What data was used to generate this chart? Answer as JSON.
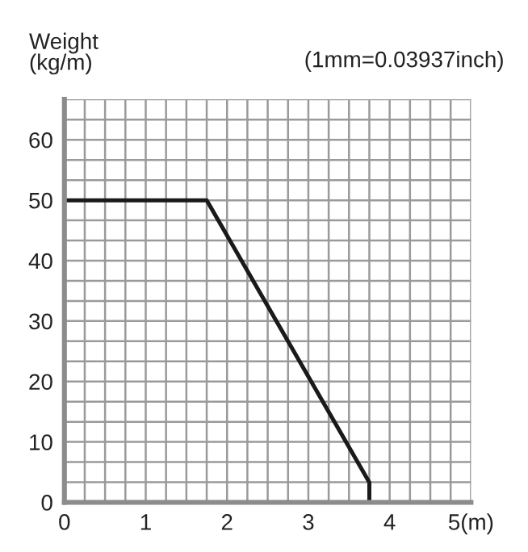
{
  "chart_data": {
    "type": "line",
    "ylabel": "Weight\n(kg/m)",
    "annotations": [
      "(1mm=0.03937inch)"
    ],
    "x": [
      0,
      1.75,
      3.75,
      3.75
    ],
    "series": [
      {
        "color": "#1a1a1a",
        "values": [
          50,
          50,
          3.3,
          0
        ]
      }
    ],
    "xlim": [
      0,
      5
    ],
    "ylim": [
      0,
      66.7
    ],
    "xticks": [
      0,
      {
        "value": 0.25,
        "label": null
      },
      {
        "value": 0.5,
        "label": null
      },
      {
        "value": 0.75,
        "label": null
      },
      1,
      {
        "value": 1.25,
        "label": null
      },
      {
        "value": 1.5,
        "label": null
      },
      {
        "value": 1.75,
        "label": null
      },
      2,
      {
        "value": 2.25,
        "label": null
      },
      {
        "value": 2.5,
        "label": null
      },
      {
        "value": 2.75,
        "label": null
      },
      3,
      {
        "value": 3.25,
        "label": null
      },
      {
        "value": 3.5,
        "label": null
      },
      {
        "value": 3.75,
        "label": null
      },
      4,
      {
        "value": 4.25,
        "label": null
      },
      {
        "value": 4.5,
        "label": null
      },
      {
        "value": 4.75,
        "label": null
      },
      {
        "value": 5,
        "label": "5(m)"
      }
    ],
    "yticks": [
      0,
      {
        "value": 3.33,
        "label": null
      },
      {
        "value": 6.67,
        "label": null
      },
      10,
      {
        "value": 13.33,
        "label": null
      },
      {
        "value": 16.67,
        "label": null
      },
      20,
      {
        "value": 23.33,
        "label": null
      },
      {
        "value": 26.67,
        "label": null
      },
      30,
      {
        "value": 33.33,
        "label": null
      },
      {
        "value": 36.67,
        "label": null
      },
      40,
      {
        "value": 43.33,
        "label": null
      },
      {
        "value": 46.67,
        "label": null
      },
      50,
      {
        "value": 53.33,
        "label": null
      },
      {
        "value": 56.67,
        "label": null
      },
      60,
      {
        "value": 63.33,
        "label": null
      },
      {
        "value": 66.7,
        "label": null
      }
    ],
    "grid": true,
    "marker": "none",
    "line_style": "solid"
  }
}
